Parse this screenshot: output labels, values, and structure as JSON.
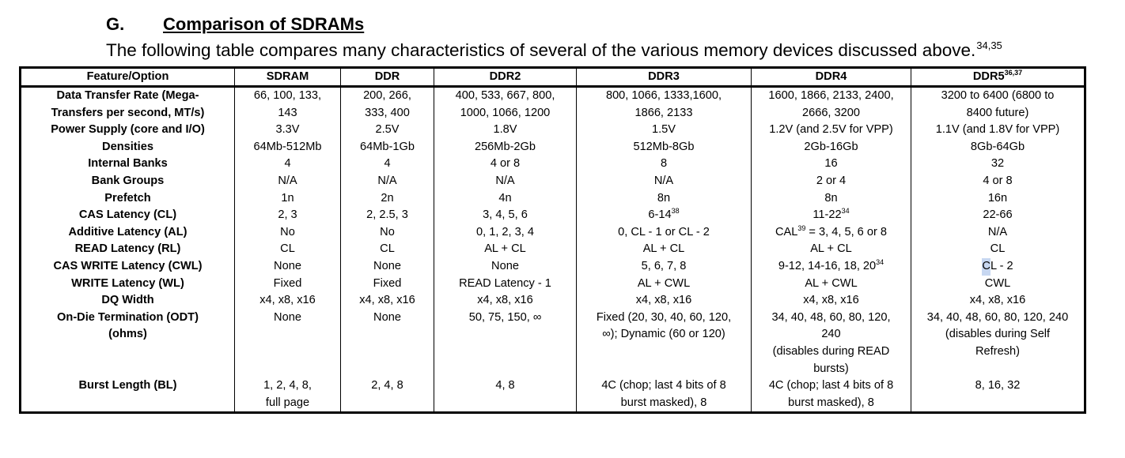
{
  "heading": {
    "letter": "G.",
    "title": "Comparison of SDRAMs"
  },
  "intro": {
    "text": "The following table compares many characteristics of several of the various memory devices discussed above.",
    "refs": "34,35"
  },
  "table": {
    "headers": {
      "feature": "Feature/Option",
      "sdram": "SDRAM",
      "ddr": "DDR",
      "ddr2": "DDR2",
      "ddr3": "DDR3",
      "ddr4": "DDR4",
      "ddr5": "DDR5",
      "ddr5_refs": "36,37"
    },
    "rows": {
      "transfer": {
        "label": [
          "Data Transfer Rate (Mega-",
          "Transfers per second, MT/s)"
        ],
        "sdram": [
          "66, 100, 133,",
          "143"
        ],
        "ddr": [
          "200, 266,",
          "333, 400"
        ],
        "ddr2": [
          "400, 533, 667, 800,",
          "1000, 1066, 1200"
        ],
        "ddr3": [
          "800, 1066, 1333,1600,",
          "1866, 2133"
        ],
        "ddr4": [
          "1600, 1866, 2133, 2400,",
          "2666, 3200"
        ],
        "ddr5": [
          "3200 to 6400 (6800 to",
          "8400 future)"
        ]
      },
      "power": {
        "label": "Power Supply (core and I/O)",
        "sdram": "3.3V",
        "ddr": "2.5V",
        "ddr2": "1.8V",
        "ddr3": "1.5V",
        "ddr4": "1.2V (and 2.5V for VPP)",
        "ddr5": "1.1V (and 1.8V for VPP)"
      },
      "densities": {
        "label": "Densities",
        "sdram": "64Mb-512Mb",
        "ddr": "64Mb-1Gb",
        "ddr2": "256Mb-2Gb",
        "ddr3": "512Mb-8Gb",
        "ddr4": "2Gb-16Gb",
        "ddr5": "8Gb-64Gb"
      },
      "banks": {
        "label": "Internal Banks",
        "sdram": "4",
        "ddr": "4",
        "ddr2": "4 or 8",
        "ddr3": "8",
        "ddr4": "16",
        "ddr5": "32"
      },
      "groups": {
        "label": "Bank Groups",
        "sdram": "N/A",
        "ddr": "N/A",
        "ddr2": "N/A",
        "ddr3": "N/A",
        "ddr4": "2 or 4",
        "ddr5": "4 or 8"
      },
      "prefetch": {
        "label": "Prefetch",
        "sdram": "1n",
        "ddr": "2n",
        "ddr2": "4n",
        "ddr3": "8n",
        "ddr4": "8n",
        "ddr5": "16n"
      },
      "cas": {
        "label": "CAS Latency (CL)",
        "sdram": "2, 3",
        "ddr": "2, 2.5, 3",
        "ddr2": "3, 4, 5, 6",
        "ddr3": "6-14",
        "ddr3_ref": "38",
        "ddr4": "11-22",
        "ddr4_ref": "34",
        "ddr5": "22-66"
      },
      "additive": {
        "label": "Additive Latency (AL)",
        "sdram": "No",
        "ddr": "No",
        "ddr2": "0, 1, 2, 3, 4",
        "ddr3": "0, CL - 1 or CL - 2",
        "ddr4_a": "CAL",
        "ddr4_ref": "39",
        "ddr4_b": " = 3, 4, 5, 6 or 8",
        "ddr5": "N/A"
      },
      "read": {
        "label": "READ Latency (RL)",
        "sdram": "CL",
        "ddr": "CL",
        "ddr2": "AL + CL",
        "ddr3": "AL + CL",
        "ddr4": "AL + CL",
        "ddr5": "CL"
      },
      "caswrite": {
        "label": "CAS WRITE Latency (CWL)",
        "sdram": "None",
        "ddr": "None",
        "ddr2": "None",
        "ddr3": "5, 6, 7, 8",
        "ddr4": "9-12, 14-16, 18, 20",
        "ddr4_ref": "34",
        "ddr5_a": "C",
        "ddr5_b": "L - 2"
      },
      "write": {
        "label": "WRITE Latency (WL)",
        "sdram": "Fixed",
        "ddr": "Fixed",
        "ddr2": "READ Latency - 1",
        "ddr3": "AL + CWL",
        "ddr4": "AL + CWL",
        "ddr5": "CWL"
      },
      "dq": {
        "label": "DQ Width",
        "sdram": "x4, x8, x16",
        "ddr": "x4, x8, x16",
        "ddr2": "x4, x8, x16",
        "ddr3": "x4, x8, x16",
        "ddr4": "x4, x8, x16",
        "ddr5": "x4, x8, x16"
      },
      "odt": {
        "label": [
          "On-Die Termination (ODT)",
          "(ohms)"
        ],
        "sdram": "None",
        "ddr": "None",
        "ddr2": "50, 75, 150, ∞",
        "ddr3": [
          "Fixed (20, 30, 40, 60, 120,",
          "∞); Dynamic (60 or 120)"
        ],
        "ddr4": [
          "34, 40, 48, 60, 80, 120,",
          "240",
          "(disables during READ",
          "bursts)"
        ],
        "ddr5": [
          "34, 40, 48, 60, 80, 120, 240",
          "(disables during Self",
          "Refresh)"
        ]
      },
      "burst": {
        "label": "Burst Length (BL)",
        "sdram": [
          "1, 2, 4, 8,",
          "full page"
        ],
        "ddr": "2, 4, 8",
        "ddr2": "4, 8",
        "ddr3": [
          "4C (chop; last 4 bits of 8",
          "burst masked), 8"
        ],
        "ddr4": [
          "4C (chop; last 4 bits of 8",
          "burst masked), 8"
        ],
        "ddr5": "8, 16, 32"
      }
    }
  }
}
